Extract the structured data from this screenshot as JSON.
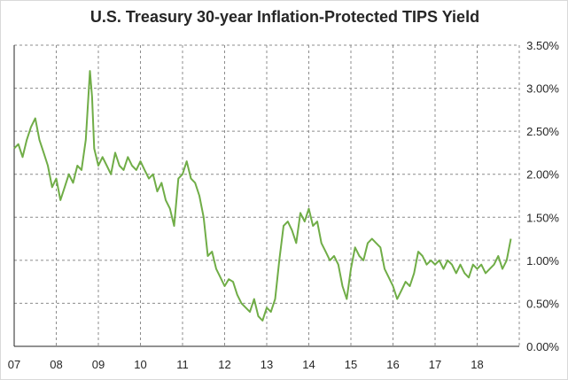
{
  "chart_data": {
    "type": "line",
    "title": "U.S. Treasury 30-year Inflation-Protected TIPS Yield",
    "xlabel": "",
    "ylabel": "",
    "x_tick_labels": [
      "07",
      "08",
      "09",
      "10",
      "11",
      "12",
      "13",
      "14",
      "15",
      "16",
      "17",
      "18"
    ],
    "y_tick_labels": [
      "0.00%",
      "0.50%",
      "1.00%",
      "1.50%",
      "2.00%",
      "2.50%",
      "3.00%",
      "3.50%"
    ],
    "xlim": [
      2007.0,
      2019.0
    ],
    "ylim": [
      0.0,
      3.5
    ],
    "grid": "dashed vertical and horizontal",
    "legend": "none",
    "line_color": "#70ad47",
    "series": [
      {
        "x": [
          2007.0,
          2007.1,
          2007.2,
          2007.3,
          2007.4,
          2007.5,
          2007.6,
          2007.7,
          2007.8,
          2007.9,
          2008.0,
          2008.1,
          2008.2,
          2008.3,
          2008.4,
          2008.5,
          2008.6,
          2008.7,
          2008.8,
          2008.85,
          2008.9,
          2009.0,
          2009.1,
          2009.2,
          2009.3,
          2009.4,
          2009.5,
          2009.6,
          2009.7,
          2009.8,
          2009.9,
          2010.0,
          2010.1,
          2010.2,
          2010.3,
          2010.4,
          2010.5,
          2010.6,
          2010.7,
          2010.8,
          2010.9,
          2011.0,
          2011.1,
          2011.2,
          2011.3,
          2011.4,
          2011.5,
          2011.6,
          2011.7,
          2011.8,
          2011.9,
          2012.0,
          2012.1,
          2012.2,
          2012.3,
          2012.4,
          2012.5,
          2012.6,
          2012.7,
          2012.8,
          2012.9,
          2013.0,
          2013.1,
          2013.2,
          2013.3,
          2013.4,
          2013.5,
          2013.6,
          2013.7,
          2013.8,
          2013.9,
          2014.0,
          2014.1,
          2014.2,
          2014.3,
          2014.4,
          2014.5,
          2014.6,
          2014.7,
          2014.8,
          2014.9,
          2015.0,
          2015.1,
          2015.2,
          2015.3,
          2015.4,
          2015.5,
          2015.6,
          2015.7,
          2015.8,
          2015.9,
          2016.0,
          2016.1,
          2016.2,
          2016.3,
          2016.4,
          2016.5,
          2016.6,
          2016.7,
          2016.8,
          2016.9,
          2017.0,
          2017.1,
          2017.2,
          2017.3,
          2017.4,
          2017.5,
          2017.6,
          2017.7,
          2017.8,
          2017.9,
          2018.0,
          2018.1,
          2018.2,
          2018.3,
          2018.4,
          2018.5,
          2018.6,
          2018.7,
          2018.8
        ],
        "values": [
          2.3,
          2.35,
          2.2,
          2.4,
          2.55,
          2.65,
          2.4,
          2.25,
          2.1,
          1.85,
          1.95,
          1.7,
          1.85,
          2.0,
          1.9,
          2.1,
          2.05,
          2.4,
          3.2,
          2.9,
          2.3,
          2.1,
          2.2,
          2.1,
          2.0,
          2.25,
          2.1,
          2.05,
          2.2,
          2.1,
          2.05,
          2.15,
          2.05,
          1.95,
          2.0,
          1.8,
          1.9,
          1.7,
          1.6,
          1.4,
          1.95,
          2.0,
          2.15,
          1.95,
          1.9,
          1.75,
          1.5,
          1.05,
          1.1,
          0.9,
          0.8,
          0.7,
          0.78,
          0.75,
          0.6,
          0.5,
          0.45,
          0.4,
          0.55,
          0.35,
          0.3,
          0.45,
          0.4,
          0.55,
          1.0,
          1.4,
          1.45,
          1.35,
          1.2,
          1.55,
          1.45,
          1.6,
          1.4,
          1.45,
          1.2,
          1.1,
          1.0,
          1.05,
          0.95,
          0.7,
          0.55,
          0.9,
          1.15,
          1.05,
          1.0,
          1.2,
          1.25,
          1.2,
          1.15,
          0.9,
          0.8,
          0.7,
          0.55,
          0.65,
          0.75,
          0.7,
          0.85,
          1.1,
          1.05,
          0.95,
          1.0,
          0.95,
          1.0,
          0.9,
          1.0,
          0.95,
          0.85,
          0.95,
          0.85,
          0.8,
          0.95,
          0.9,
          0.95,
          0.85,
          0.9,
          0.95,
          1.05,
          0.9,
          1.0,
          1.25
        ]
      }
    ]
  }
}
